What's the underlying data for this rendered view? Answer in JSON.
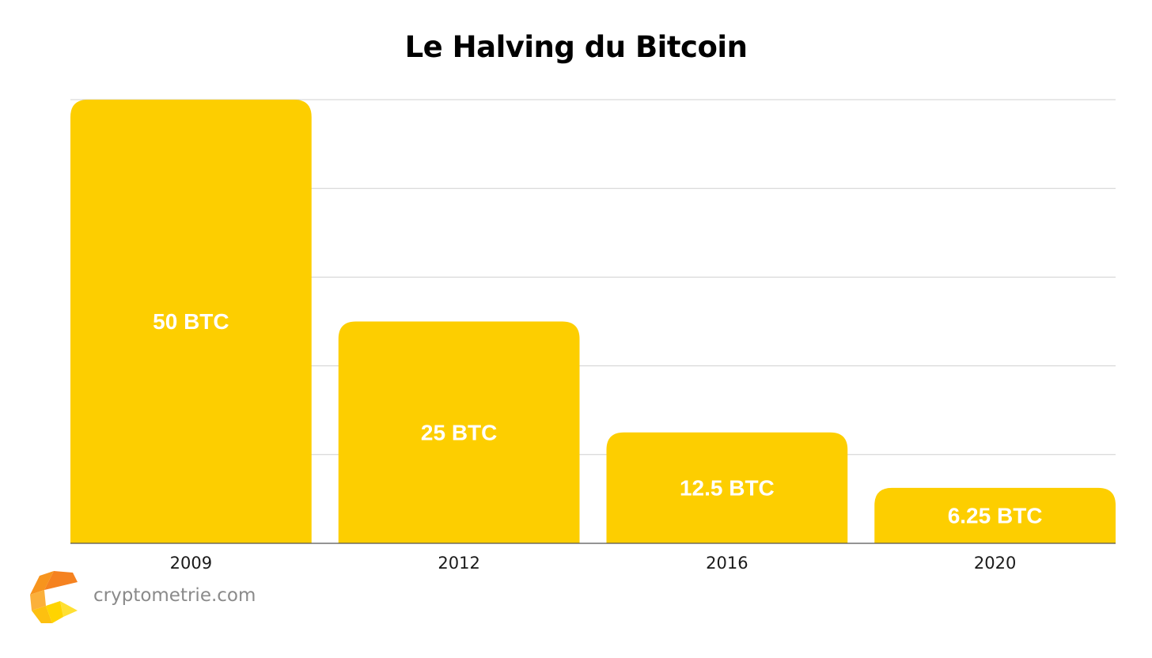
{
  "chart_data": {
    "type": "bar",
    "title": "Le Halving du Bitcoin",
    "xlabel": "",
    "ylabel": "",
    "categories": [
      "2009",
      "2012",
      "2016",
      "2020"
    ],
    "values": [
      50,
      25,
      12.5,
      6.25
    ],
    "data_labels": [
      "50 BTC",
      "25 BTC",
      "12.5 BTC",
      "6.25 BTC"
    ],
    "ylim": [
      0,
      50
    ],
    "grid": true,
    "bar_color": "#FDCE00",
    "grid_color": "#d0d0d0",
    "axis_color": "#555555"
  },
  "brand": {
    "name": "cryptometrie.com",
    "logo_icon": "cryptometrie-logo-icon"
  }
}
